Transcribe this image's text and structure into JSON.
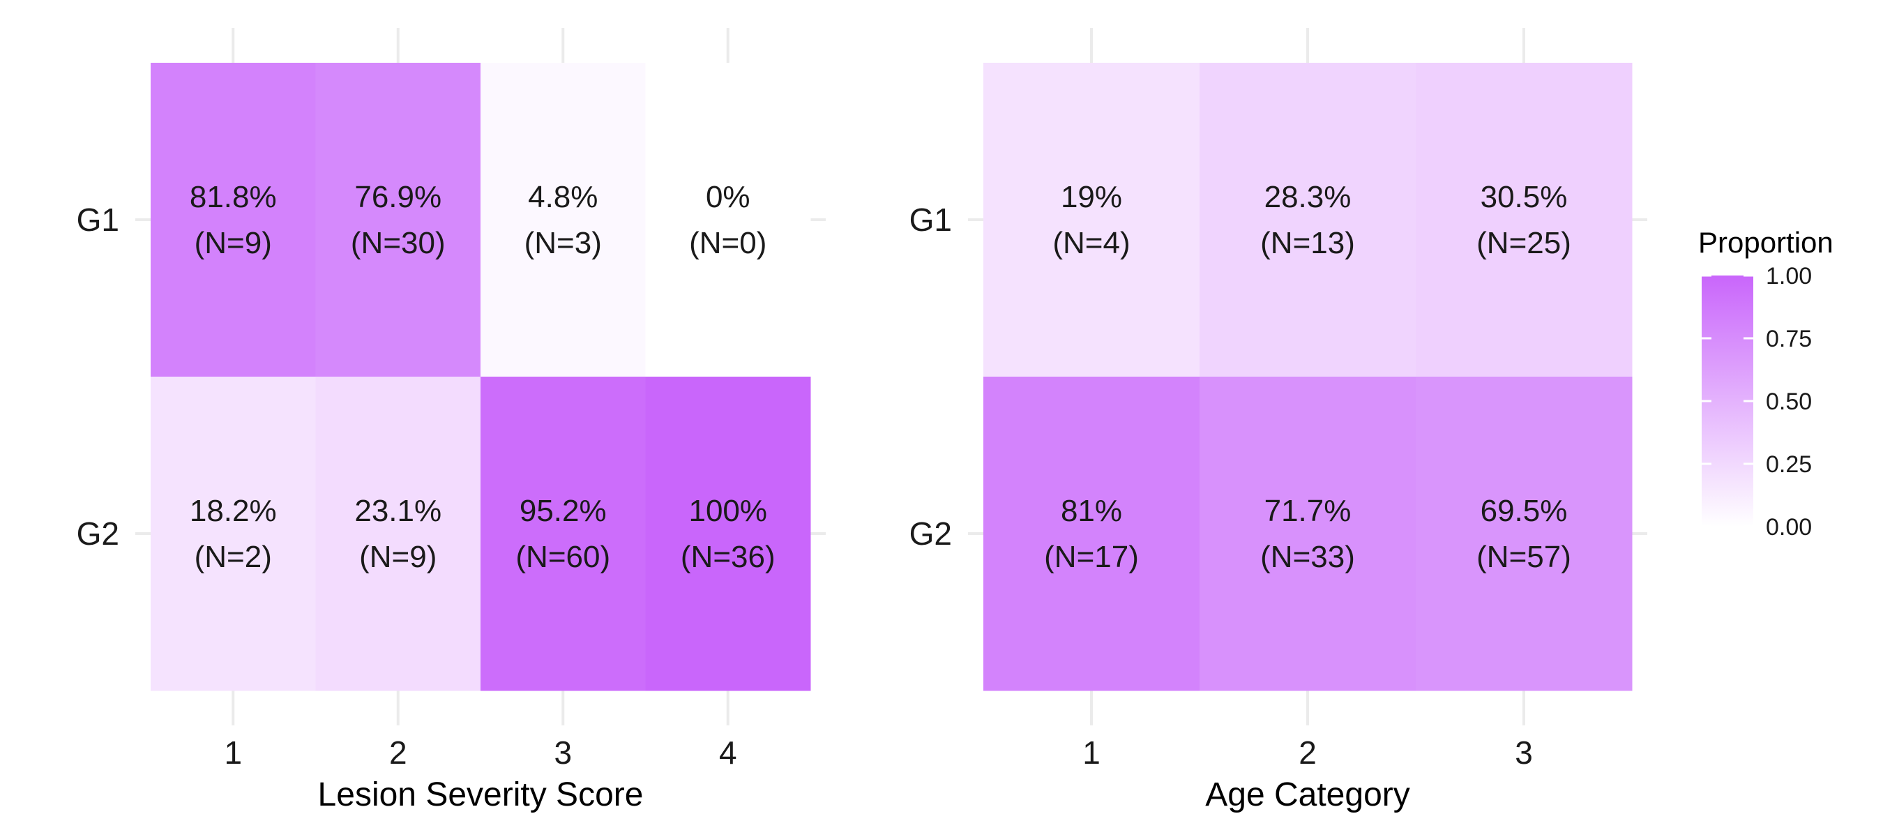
{
  "chart_data": [
    {
      "type": "heatmap",
      "xlabel": "Lesion Severity Score",
      "x_categories": [
        "1",
        "2",
        "3",
        "4"
      ],
      "y_categories": [
        "G1",
        "G2"
      ],
      "cells": [
        {
          "x": "1",
          "y": "G1",
          "value": 0.818,
          "pct_label": "81.8%",
          "n_label": "(N=9)"
        },
        {
          "x": "2",
          "y": "G1",
          "value": 0.769,
          "pct_label": "76.9%",
          "n_label": "(N=30)"
        },
        {
          "x": "3",
          "y": "G1",
          "value": 0.048,
          "pct_label": "4.8%",
          "n_label": "(N=3)"
        },
        {
          "x": "4",
          "y": "G1",
          "value": 0.0,
          "pct_label": "0%",
          "n_label": "(N=0)"
        },
        {
          "x": "1",
          "y": "G2",
          "value": 0.182,
          "pct_label": "18.2%",
          "n_label": "(N=2)"
        },
        {
          "x": "2",
          "y": "G2",
          "value": 0.231,
          "pct_label": "23.1%",
          "n_label": "(N=9)"
        },
        {
          "x": "3",
          "y": "G2",
          "value": 0.952,
          "pct_label": "95.2%",
          "n_label": "(N=60)"
        },
        {
          "x": "4",
          "y": "G2",
          "value": 1.0,
          "pct_label": "100%",
          "n_label": "(N=36)"
        }
      ]
    },
    {
      "type": "heatmap",
      "xlabel": "Age Category",
      "x_categories": [
        "1",
        "2",
        "3"
      ],
      "y_categories": [
        "G1",
        "G2"
      ],
      "cells": [
        {
          "x": "1",
          "y": "G1",
          "value": 0.19,
          "pct_label": "19%",
          "n_label": "(N=4)"
        },
        {
          "x": "2",
          "y": "G1",
          "value": 0.283,
          "pct_label": "28.3%",
          "n_label": "(N=13)"
        },
        {
          "x": "3",
          "y": "G1",
          "value": 0.305,
          "pct_label": "30.5%",
          "n_label": "(N=25)"
        },
        {
          "x": "1",
          "y": "G2",
          "value": 0.81,
          "pct_label": "81%",
          "n_label": "(N=17)"
        },
        {
          "x": "2",
          "y": "G2",
          "value": 0.717,
          "pct_label": "71.7%",
          "n_label": "(N=33)"
        },
        {
          "x": "3",
          "y": "G2",
          "value": 0.695,
          "pct_label": "69.5%",
          "n_label": "(N=57)"
        }
      ]
    }
  ],
  "legend": {
    "title": "Proportion",
    "ticks": [
      {
        "value": 1.0,
        "label": "1.00"
      },
      {
        "value": 0.75,
        "label": "0.75"
      },
      {
        "value": 0.5,
        "label": "0.50"
      },
      {
        "value": 0.25,
        "label": "0.25"
      },
      {
        "value": 0.0,
        "label": "0.00"
      }
    ],
    "range": [
      0,
      1
    ],
    "position": "right"
  },
  "colors": {
    "low": "#ffffff",
    "high": "#c966fb",
    "grid": "#ebebeb",
    "text": "#1a1a1a"
  }
}
